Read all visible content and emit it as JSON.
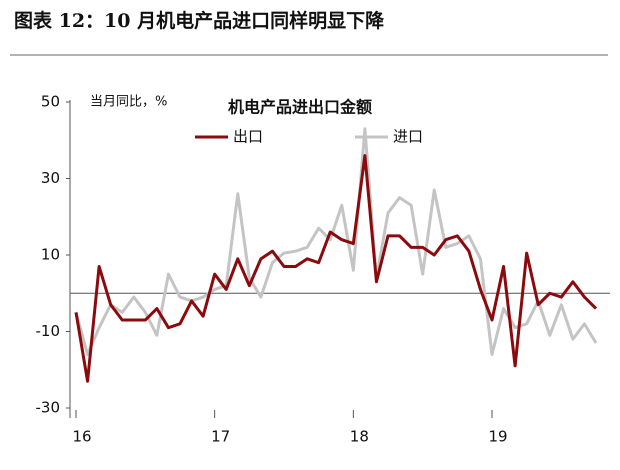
{
  "header": {
    "title": "图表 12：10 月机电产品进口同样明显下降"
  },
  "chart_data": {
    "type": "line",
    "title": "机电产品进出口金额",
    "y_label": "当月同比，%",
    "x": [
      0,
      1,
      2,
      3,
      4,
      5,
      6,
      7,
      8,
      9,
      10,
      11,
      12,
      13,
      14,
      15,
      16,
      17,
      18,
      19,
      20,
      21,
      22,
      23,
      24,
      25,
      26,
      27,
      28,
      29,
      30,
      31,
      32,
      33,
      34,
      35,
      36,
      37,
      38,
      39,
      40,
      41,
      42,
      43,
      44,
      45
    ],
    "xlim": [
      0,
      45
    ],
    "xticks": [
      {
        "value": 0,
        "label": "16"
      },
      {
        "value": 12,
        "label": "17"
      },
      {
        "value": 24,
        "label": "18"
      },
      {
        "value": 36,
        "label": "19"
      }
    ],
    "ylim": [
      -30,
      50
    ],
    "yticks": [
      -30,
      -10,
      10,
      30,
      50
    ],
    "series": [
      {
        "name": "出口",
        "color": "#8b0a0e",
        "values": [
          -5,
          -23,
          7,
          -3,
          -7,
          -7,
          -7,
          -4,
          -9,
          -8,
          -2,
          -6,
          5,
          1,
          9,
          2,
          9,
          11,
          7,
          7,
          9,
          8,
          16,
          14,
          13,
          36,
          3,
          15,
          15,
          12,
          12,
          10,
          14,
          15,
          11,
          1,
          -7,
          7,
          -19,
          10.5,
          -3,
          0,
          -1,
          3,
          -1,
          -4
        ]
      },
      {
        "name": "进口",
        "color": "#c4c4c4",
        "values": [
          -5,
          -16,
          -9,
          -3,
          -5,
          -1,
          -5,
          -11,
          5,
          -1,
          -2,
          -1,
          1,
          2,
          26,
          4,
          -1,
          8,
          10.5,
          11,
          12,
          17,
          14,
          23,
          6,
          43,
          4,
          21,
          25,
          23,
          5,
          27,
          12,
          13,
          15,
          9,
          -16,
          -4,
          -9,
          -8,
          -2,
          -11,
          -3,
          -12,
          -8,
          -13
        ]
      }
    ]
  }
}
